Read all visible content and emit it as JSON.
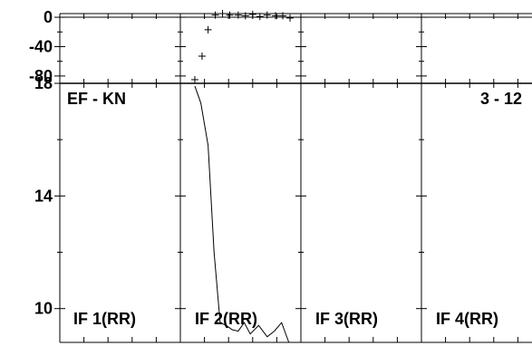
{
  "chart_data": {
    "type": "line",
    "title_left": "EF - KN",
    "title_right": "3 - 12",
    "panels": [
      {
        "label": "IF 1(RR)"
      },
      {
        "label": "IF 2(RR)"
      },
      {
        "label": "IF 3(RR)"
      },
      {
        "label": "IF 4(RR)"
      }
    ],
    "top_axis": {
      "ylim": [
        -90,
        5
      ],
      "ticks": [
        0,
        -40,
        -80
      ],
      "tick_labels": [
        "0",
        "-40",
        "-80"
      ]
    },
    "bottom_axis": {
      "ylim": [
        8.8,
        18
      ],
      "ticks": [
        18,
        14,
        10
      ],
      "tick_labels": [
        "18",
        "14",
        "10"
      ]
    },
    "phase_series": {
      "panel": 1,
      "marker": "+",
      "points": [
        {
          "x": 0.12,
          "y": -85
        },
        {
          "x": 0.18,
          "y": -53
        },
        {
          "x": 0.23,
          "y": -17
        },
        {
          "x": 0.29,
          "y": 3
        },
        {
          "x": 0.35,
          "y": 5
        },
        {
          "x": 0.41,
          "y": 3
        },
        {
          "x": 0.48,
          "y": 3
        },
        {
          "x": 0.54,
          "y": 2
        },
        {
          "x": 0.6,
          "y": 4
        },
        {
          "x": 0.66,
          "y": 1
        },
        {
          "x": 0.72,
          "y": 3
        },
        {
          "x": 0.79,
          "y": 2
        },
        {
          "x": 0.85,
          "y": 2
        },
        {
          "x": 0.91,
          "y": -1
        }
      ]
    },
    "amplitude_series": {
      "panel": 1,
      "points": [
        {
          "x": 0.12,
          "y": 17.9
        },
        {
          "x": 0.17,
          "y": 17.3
        },
        {
          "x": 0.23,
          "y": 15.8
        },
        {
          "x": 0.28,
          "y": 12.0
        },
        {
          "x": 0.33,
          "y": 9.5
        },
        {
          "x": 0.38,
          "y": 9.4
        },
        {
          "x": 0.43,
          "y": 9.25
        },
        {
          "x": 0.48,
          "y": 9.2
        },
        {
          "x": 0.53,
          "y": 9.5
        },
        {
          "x": 0.58,
          "y": 9.1
        },
        {
          "x": 0.65,
          "y": 9.4
        },
        {
          "x": 0.72,
          "y": 9.0
        },
        {
          "x": 0.78,
          "y": 9.2
        },
        {
          "x": 0.84,
          "y": 9.5
        },
        {
          "x": 0.9,
          "y": 8.8
        }
      ]
    }
  }
}
